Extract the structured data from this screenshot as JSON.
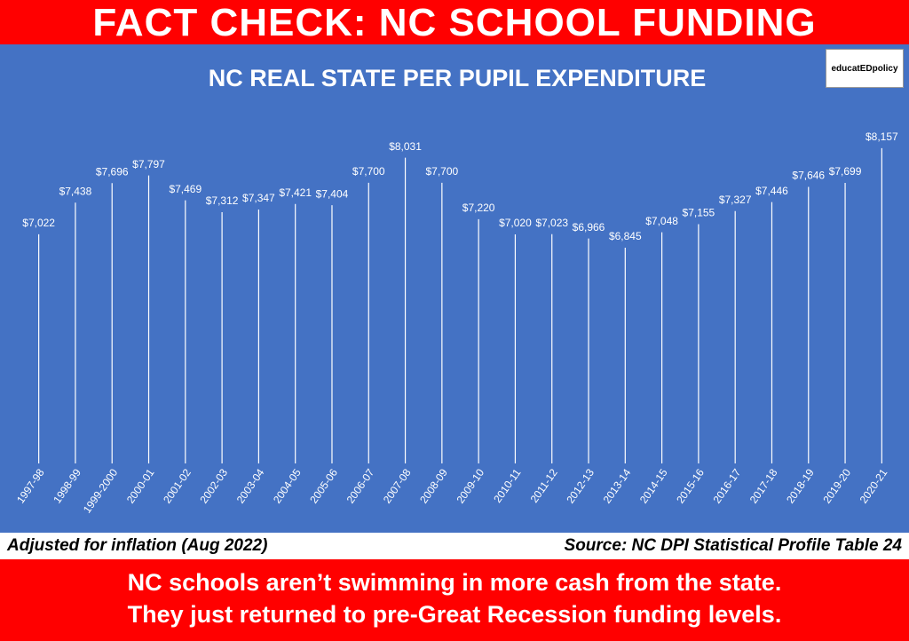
{
  "header": {
    "title": "FACT CHECK: NC SCHOOL FUNDING"
  },
  "logo": "educatEDpolicy",
  "chart_data": {
    "type": "bar",
    "title": "NC REAL STATE PER PUPIL EXPENDITURE",
    "categories": [
      "1997-98",
      "1998-99",
      "1999-2000",
      "2000-01",
      "2001-02",
      "2002-03",
      "2003-04",
      "2004-05",
      "2005-06",
      "2006-07",
      "2007-08",
      "2008-09",
      "2009-10",
      "2010-11",
      "2011-12",
      "2012-13",
      "2013-14",
      "2014-15",
      "2015-16",
      "2016-17",
      "2017-18",
      "2018-19",
      "2019-20",
      "2020-21"
    ],
    "values": [
      7022,
      7438,
      7696,
      7797,
      7469,
      7312,
      7347,
      7421,
      7404,
      7700,
      8031,
      7700,
      7220,
      7020,
      7023,
      6966,
      6845,
      7048,
      7155,
      7327,
      7446,
      7646,
      7699,
      8157
    ],
    "value_labels": [
      "$7,022",
      "$7,438",
      "$7,696",
      "$7,797",
      "$7,469",
      "$7,312",
      "$7,347",
      "$7,421",
      "$7,404",
      "$7,700",
      "$8,031",
      "$7,700",
      "$7,220",
      "$7,020",
      "$7,023",
      "$6,966",
      "$6,845",
      "$7,048",
      "$7,155",
      "$7,327",
      "$7,446",
      "$7,646",
      "$7,699",
      "$8,157"
    ],
    "color": "#ffffff",
    "ylim": [
      4000,
      8600
    ]
  },
  "footer": {
    "note_left": "Adjusted for inflation (Aug 2022)",
    "note_right": "Source: NC DPI Statistical Profile Table 24",
    "message": [
      "NC schools aren’t swimming in more cash from the state.",
      "They just returned to pre-Great Recession funding levels."
    ]
  }
}
